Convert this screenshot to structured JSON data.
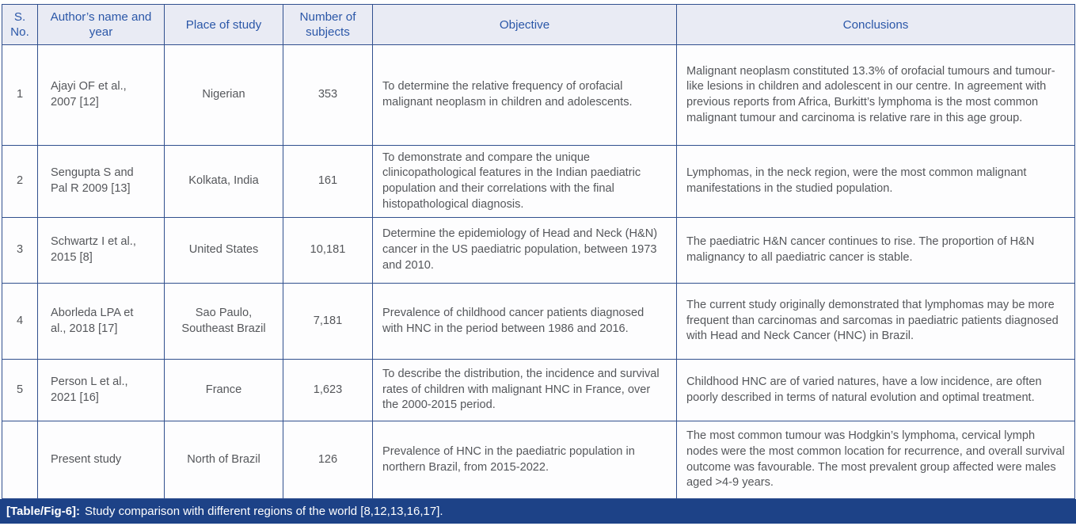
{
  "colors": {
    "header_bg": "#e9ebf4",
    "header_text": "#2b57a8",
    "grid_border": "#31508e",
    "body_text": "#55575b",
    "caption_bg": "#1d4287",
    "caption_text": "#ffffff"
  },
  "table": {
    "header": {
      "sno": "S. No.",
      "author": "Author’s name and year",
      "place": "Place of study",
      "subjects": "Number of subjects",
      "objective": "Objective",
      "conclusions": "Conclusions"
    },
    "rows": [
      {
        "sno": "1",
        "author": "Ajayi OF et al., 2007 [12]",
        "place": "Nigerian",
        "subjects": "353",
        "objective": "To determine the relative frequency of orofacial malignant neoplasm in children and adolescents.",
        "conclusions": "Malignant neoplasm constituted 13.3% of orofacial tumours and tumour-like lesions in children and adolescent in our centre. In agreement with previous reports from Africa, Burkitt’s lymphoma is the most common malignant tumour and carcinoma is relative rare in this age group."
      },
      {
        "sno": "2",
        "author": "Sengupta S and Pal R 2009 [13]",
        "place": "Kolkata, India",
        "subjects": "161",
        "objective": "To demonstrate and compare the unique clinicopathological features in the Indian paediatric population and their correlations with the final histopathological diagnosis.",
        "conclusions": "Lymphomas, in the neck region, were the most common malignant manifestations in the studied population."
      },
      {
        "sno": "3",
        "author": "Schwartz I et al., 2015 [8]",
        "place": "United States",
        "subjects": "10,181",
        "objective": "Determine the epidemiology of Head and Neck (H&N) cancer in the US paediatric population, between 1973 and 2010.",
        "conclusions": "The paediatric H&N cancer continues to rise. The proportion of H&N malignancy to all paediatric cancer is stable."
      },
      {
        "sno": "4",
        "author": "Aborleda LPA et al., 2018 [17]",
        "place": "Sao Paulo, Southeast Brazil",
        "subjects": "7,181",
        "objective": "Prevalence of childhood cancer patients diagnosed with HNC in the period between 1986 and 2016.",
        "conclusions": "The current study originally demonstrated that lymphomas may be more frequent than carcinomas and sarcomas in paediatric patients diagnosed with Head and Neck Cancer (HNC) in Brazil."
      },
      {
        "sno": "5",
        "author": "Person L et al., 2021 [16]",
        "place": "France",
        "subjects": "1,623",
        "objective": "To describe the distribution, the incidence and survival rates of children with malignant HNC in France, over the 2000-2015 period.",
        "conclusions": "Childhood HNC are of varied natures, have a low incidence, are often poorly described in terms of natural evolution and optimal treatment."
      },
      {
        "sno": "",
        "author": "Present study",
        "place": "North of Brazil",
        "subjects": "126",
        "objective": "Prevalence of HNC in the paediatric population in northern Brazil, from 2015-2022.",
        "conclusions": "The most common tumour was Hodgkin’s lymphoma, cervical lymph nodes were the most common location for recurrence, and overall survival outcome was favourable. The most prevalent group affected were males aged >4-9 years."
      }
    ]
  },
  "caption": {
    "label": "[Table/Fig-6]:",
    "text": "Study comparison with different regions of the world [8,12,13,16,17]."
  }
}
